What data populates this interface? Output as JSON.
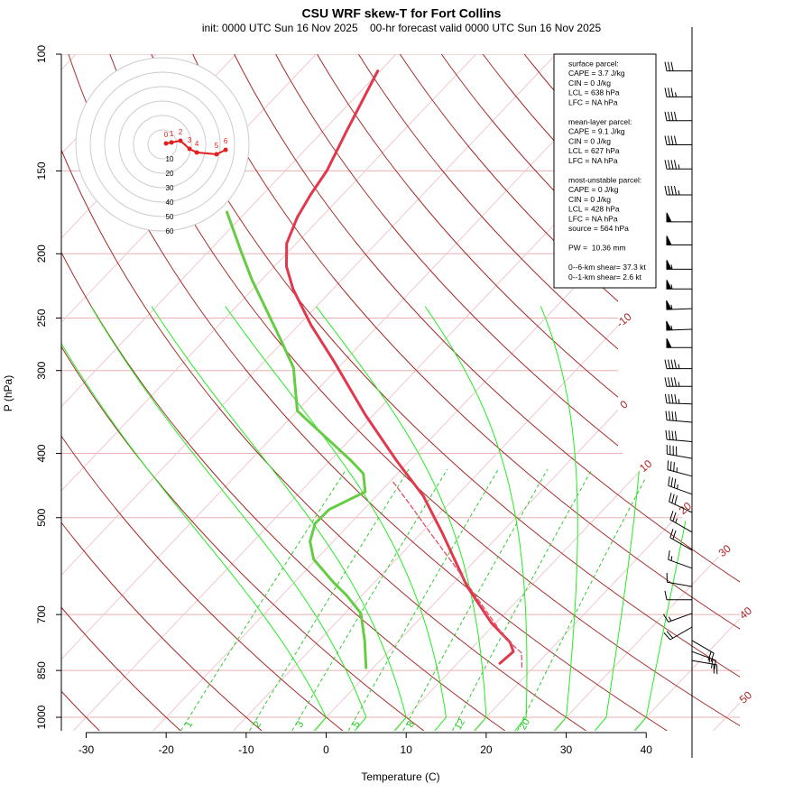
{
  "chart_data": {
    "type": "skewt",
    "title": "CSU WRF skew-T for Fort Collins",
    "subtitle": "init: 0000 UTC Sun 16 Nov 2025    00-hr forecast valid 0000 UTC Sun 16 Nov 2025",
    "x_label": "Temperature (C)",
    "y_label": "P (hPa)",
    "xlim": [
      -33.1,
      51.7
    ],
    "xticks": [
      -30,
      -20,
      -10,
      0,
      10,
      20,
      30,
      40
    ],
    "ylim": [
      1048,
      100
    ],
    "yticks": [
      100,
      150,
      200,
      250,
      300,
      400,
      500,
      700,
      850,
      1000
    ],
    "y_scale": "log",
    "grid": true,
    "isotherm_labels": [
      -10,
      0,
      10,
      20,
      30,
      40,
      50
    ],
    "mixing_ratio_labels": [
      1,
      2,
      3,
      5,
      8,
      12,
      20
    ],
    "series": [
      {
        "color": "#e0384c",
        "dash": false,
        "pressure": [
          829,
          796,
          771,
          720,
          635,
          526,
          464,
          410,
          350,
          290,
          256,
          226,
          209,
          193,
          176,
          163,
          150,
          131,
          119,
          106
        ],
        "values": [
          15.3,
          15.6,
          14.1,
          9.4,
          2.1,
          -7.5,
          -14.1,
          -21.7,
          -31.0,
          -41.4,
          -48.5,
          -55.0,
          -58.5,
          -61.2,
          -63.0,
          -64.0,
          -64.8,
          -67.0,
          -68.5,
          -70.3
        ]
      },
      {
        "color": "#66cc44",
        "dash": false,
        "pressure": [
          842,
          766,
          697,
          655,
          625,
          578,
          543,
          510,
          486,
          457,
          429,
          410,
          361,
          345,
          297,
          268,
          219,
          199,
          173
        ],
        "values": [
          -0.9,
          -4.3,
          -8.0,
          -11.9,
          -15.2,
          -20.3,
          -22.9,
          -24.4,
          -24.3,
          -21.9,
          -24.3,
          -27.4,
          -36.7,
          -40.0,
          -45.6,
          -50.8,
          -61.2,
          -65.8,
          -72.4
        ]
      },
      {
        "color": "#e05068",
        "dash": true,
        "pressure": [
          840,
          800,
          760,
          720,
          680,
          640,
          600,
          560,
          520,
          480,
          440
        ],
        "values": [
          18.5,
          16.8,
          13.0,
          9.8,
          6.4,
          2.8,
          -1.0,
          -5.2,
          -9.7,
          -14.5,
          -19.8
        ]
      }
    ],
    "winds": {
      "pressure": [
        106,
        116,
        126,
        137,
        149,
        163,
        179,
        194,
        211,
        226,
        242,
        260,
        277,
        298,
        317,
        337,
        359,
        384,
        407,
        433,
        461,
        491,
        526,
        560,
        596,
        635,
        665,
        697,
        731,
        766,
        796,
        821
      ],
      "speed_kt": [
        30,
        35,
        40,
        40,
        45,
        45,
        50,
        50,
        55,
        55,
        55,
        55,
        50,
        45,
        45,
        45,
        40,
        40,
        40,
        35,
        35,
        30,
        25,
        20,
        15,
        10,
        10,
        15,
        20,
        20,
        25,
        20
      ],
      "direction_deg": [
        270,
        270,
        270,
        270,
        270,
        270,
        270,
        270,
        270,
        270,
        268,
        268,
        270,
        270,
        270,
        272,
        275,
        275,
        280,
        285,
        290,
        295,
        300,
        300,
        290,
        280,
        270,
        250,
        240,
        120,
        110,
        100
      ]
    },
    "hodograph": {
      "rings": [
        10,
        20,
        30,
        40,
        50,
        60
      ],
      "heights_km": [
        0,
        1,
        2,
        3,
        4,
        5,
        6
      ],
      "u": [
        2.5,
        6.3,
        12.5,
        18.8,
        23.8,
        37.5,
        43.8
      ],
      "v": [
        0.6,
        1.3,
        2.5,
        -3.1,
        -5.6,
        -6.9,
        -3.8
      ],
      "color": "#e02020"
    },
    "info_box": [
      [
        "surface parcel:",
        "CAPE = 3.7 J/kg",
        "CIN = 0 J/kg",
        "LCL = 638 hPa",
        "LFC = NA hPa"
      ],
      [
        "mean-layer parcel:",
        "CAPE = 9.1 J/kg",
        "CIN = 0 J/kg",
        "LCL = 627 hPa",
        "LFC = NA hPa"
      ],
      [
        "most-unstable parcel:",
        "CAPE = 0 J/kg",
        "CIN = 0 J/kg",
        "LCL = 428 hPa",
        "LFC = NA hPa",
        "source = 564 hPa"
      ],
      [
        "PW =  10.36 mm"
      ],
      [
        "0--6-km shear= 37.3 kt",
        "0--1-km shear= 2.6 kt"
      ]
    ]
  }
}
